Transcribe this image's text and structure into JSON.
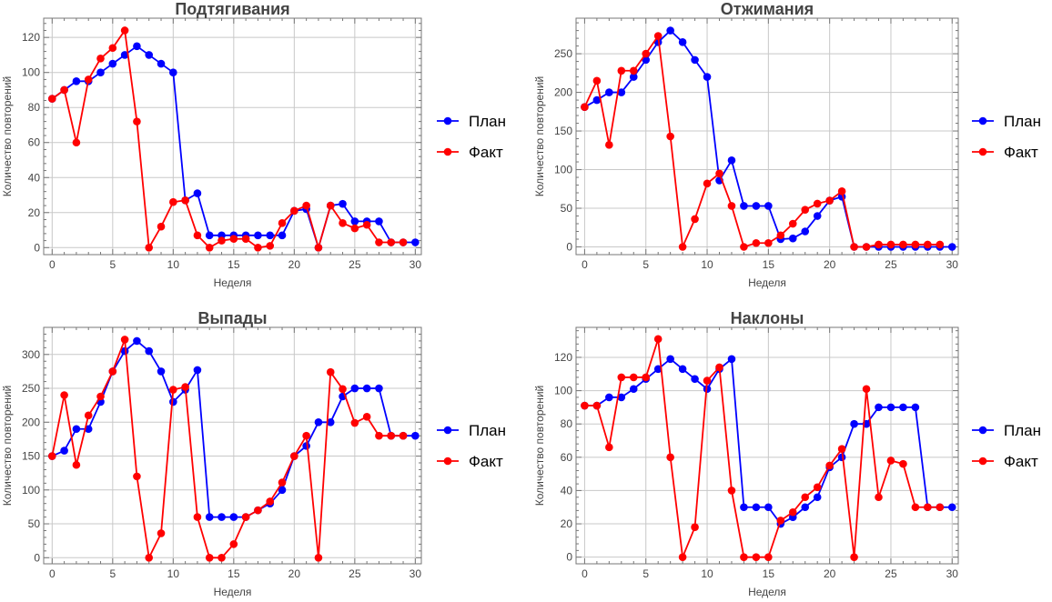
{
  "chart_data": [
    {
      "type": "line",
      "title": "Подтягивания",
      "xlabel": "Неделя",
      "ylabel": "Количество повторений",
      "xlim": [
        -0.7,
        30.5
      ],
      "ylim": [
        -4,
        131
      ],
      "xticks": [
        0,
        5,
        10,
        15,
        20,
        25,
        30
      ],
      "yticks": [
        0,
        20,
        40,
        60,
        80,
        100,
        120
      ],
      "grid": true,
      "legend_position": "right",
      "series": [
        {
          "name": "План",
          "color": "#0000ff",
          "x": [
            0,
            1,
            2,
            3,
            4,
            5,
            6,
            7,
            8,
            9,
            10,
            11,
            12,
            13,
            14,
            15,
            16,
            17,
            18,
            19,
            20,
            21,
            22,
            23,
            24,
            25,
            26,
            27,
            28,
            29,
            30
          ],
          "values": [
            85,
            90,
            95,
            95,
            100,
            105,
            110,
            115,
            110,
            105,
            100,
            27,
            31,
            7,
            7,
            7,
            7,
            7,
            7,
            7,
            21,
            22,
            0,
            24,
            25,
            15,
            15,
            15,
            3,
            3,
            3
          ]
        },
        {
          "name": "Факт",
          "color": "#ff0000",
          "x": [
            0,
            1,
            2,
            3,
            4,
            5,
            6,
            7,
            8,
            9,
            10,
            11,
            12,
            13,
            14,
            15,
            16,
            17,
            18,
            19,
            20,
            21,
            22,
            23,
            24,
            25,
            26,
            27,
            28,
            29
          ],
          "values": [
            85,
            90,
            60,
            96,
            108,
            114,
            124,
            72,
            0,
            12,
            26,
            27,
            7,
            0,
            4,
            5,
            5,
            0,
            1,
            14,
            21,
            24,
            0,
            24,
            14,
            11,
            13,
            3,
            3,
            3
          ]
        }
      ]
    },
    {
      "type": "line",
      "title": "Отжимания",
      "xlabel": "Неделя",
      "ylabel": "Количество повторений",
      "xlim": [
        -0.7,
        30.5
      ],
      "ylim": [
        -10,
        296
      ],
      "xticks": [
        0,
        5,
        10,
        15,
        20,
        25,
        30
      ],
      "yticks": [
        0,
        50,
        100,
        150,
        200,
        250
      ],
      "grid": true,
      "legend_position": "right",
      "series": [
        {
          "name": "План",
          "color": "#0000ff",
          "x": [
            0,
            1,
            2,
            3,
            4,
            5,
            6,
            7,
            8,
            9,
            10,
            11,
            12,
            13,
            14,
            15,
            16,
            17,
            18,
            19,
            20,
            21,
            22,
            23,
            24,
            25,
            26,
            27,
            28,
            29,
            30
          ],
          "values": [
            181,
            190,
            200,
            200,
            220,
            242,
            265,
            280,
            265,
            242,
            220,
            86,
            112,
            53,
            53,
            53,
            10,
            11,
            20,
            40,
            60,
            65,
            0,
            0,
            0,
            0,
            0,
            0,
            0,
            0,
            0
          ]
        },
        {
          "name": "Факт",
          "color": "#ff0000",
          "x": [
            0,
            1,
            2,
            3,
            4,
            5,
            6,
            7,
            8,
            9,
            10,
            11,
            12,
            13,
            14,
            15,
            16,
            17,
            18,
            19,
            20,
            21,
            22,
            23,
            24,
            25,
            26,
            27,
            28,
            29
          ],
          "values": [
            181,
            215,
            132,
            228,
            228,
            250,
            273,
            143,
            0,
            36,
            82,
            95,
            53,
            0,
            5,
            5,
            15,
            30,
            48,
            56,
            60,
            72,
            0,
            0,
            3,
            3,
            3,
            3,
            3,
            3
          ]
        }
      ]
    },
    {
      "type": "line",
      "title": "Выпады",
      "xlabel": "Неделя",
      "ylabel": "Количество повторений",
      "xlim": [
        -0.7,
        30.5
      ],
      "ylim": [
        -9,
        340
      ],
      "xticks": [
        0,
        5,
        10,
        15,
        20,
        25,
        30
      ],
      "yticks": [
        0,
        50,
        100,
        150,
        200,
        250,
        300
      ],
      "grid": true,
      "legend_position": "right",
      "series": [
        {
          "name": "План",
          "color": "#0000ff",
          "x": [
            0,
            1,
            2,
            3,
            4,
            5,
            6,
            7,
            8,
            9,
            10,
            11,
            12,
            13,
            14,
            15,
            16,
            17,
            18,
            19,
            20,
            21,
            22,
            23,
            24,
            25,
            26,
            27,
            28,
            29,
            30
          ],
          "values": [
            150,
            158,
            190,
            190,
            230,
            275,
            305,
            320,
            305,
            275,
            230,
            248,
            277,
            60,
            60,
            60,
            60,
            70,
            80,
            100,
            150,
            165,
            200,
            200,
            238,
            250,
            250,
            250,
            180,
            180,
            180
          ]
        },
        {
          "name": "Факт",
          "color": "#ff0000",
          "x": [
            0,
            1,
            2,
            3,
            4,
            5,
            6,
            7,
            8,
            9,
            10,
            11,
            12,
            13,
            14,
            15,
            16,
            17,
            18,
            19,
            20,
            21,
            22,
            23,
            24,
            25,
            26,
            27,
            28,
            29
          ],
          "values": [
            150,
            240,
            137,
            210,
            238,
            275,
            322,
            120,
            0,
            36,
            248,
            252,
            60,
            0,
            0,
            20,
            60,
            70,
            83,
            111,
            150,
            180,
            0,
            274,
            249,
            199,
            208,
            180,
            180,
            180
          ]
        }
      ]
    },
    {
      "type": "line",
      "title": "Наклоны",
      "xlabel": "Неделя",
      "ylabel": "Количество повторений",
      "xlim": [
        -0.7,
        30.5
      ],
      "ylim": [
        -4,
        138
      ],
      "xticks": [
        0,
        5,
        10,
        15,
        20,
        25,
        30
      ],
      "yticks": [
        0,
        20,
        40,
        60,
        80,
        100,
        120
      ],
      "grid": true,
      "legend_position": "right",
      "series": [
        {
          "name": "План",
          "color": "#0000ff",
          "x": [
            0,
            1,
            2,
            3,
            4,
            5,
            6,
            7,
            8,
            9,
            10,
            11,
            12,
            13,
            14,
            15,
            16,
            17,
            18,
            19,
            20,
            21,
            22,
            23,
            24,
            25,
            26,
            27,
            28,
            29,
            30
          ],
          "values": [
            91,
            91,
            96,
            96,
            101,
            107,
            113,
            119,
            113,
            107,
            101,
            113,
            119,
            30,
            30,
            30,
            20,
            24,
            30,
            36,
            54,
            60,
            80,
            80,
            90,
            90,
            90,
            90,
            30,
            30,
            30
          ]
        },
        {
          "name": "Факт",
          "color": "#ff0000",
          "x": [
            0,
            1,
            2,
            3,
            4,
            5,
            6,
            7,
            8,
            9,
            10,
            11,
            12,
            13,
            14,
            15,
            16,
            17,
            18,
            19,
            20,
            21,
            22,
            23,
            24,
            25,
            26,
            27,
            28,
            29
          ],
          "values": [
            91,
            91,
            66,
            108,
            108,
            108,
            131,
            60,
            0,
            18,
            106,
            114,
            40,
            0,
            0,
            0,
            22,
            27,
            36,
            42,
            55,
            65,
            0,
            101,
            36,
            58,
            56,
            30,
            30,
            30
          ]
        }
      ]
    }
  ]
}
